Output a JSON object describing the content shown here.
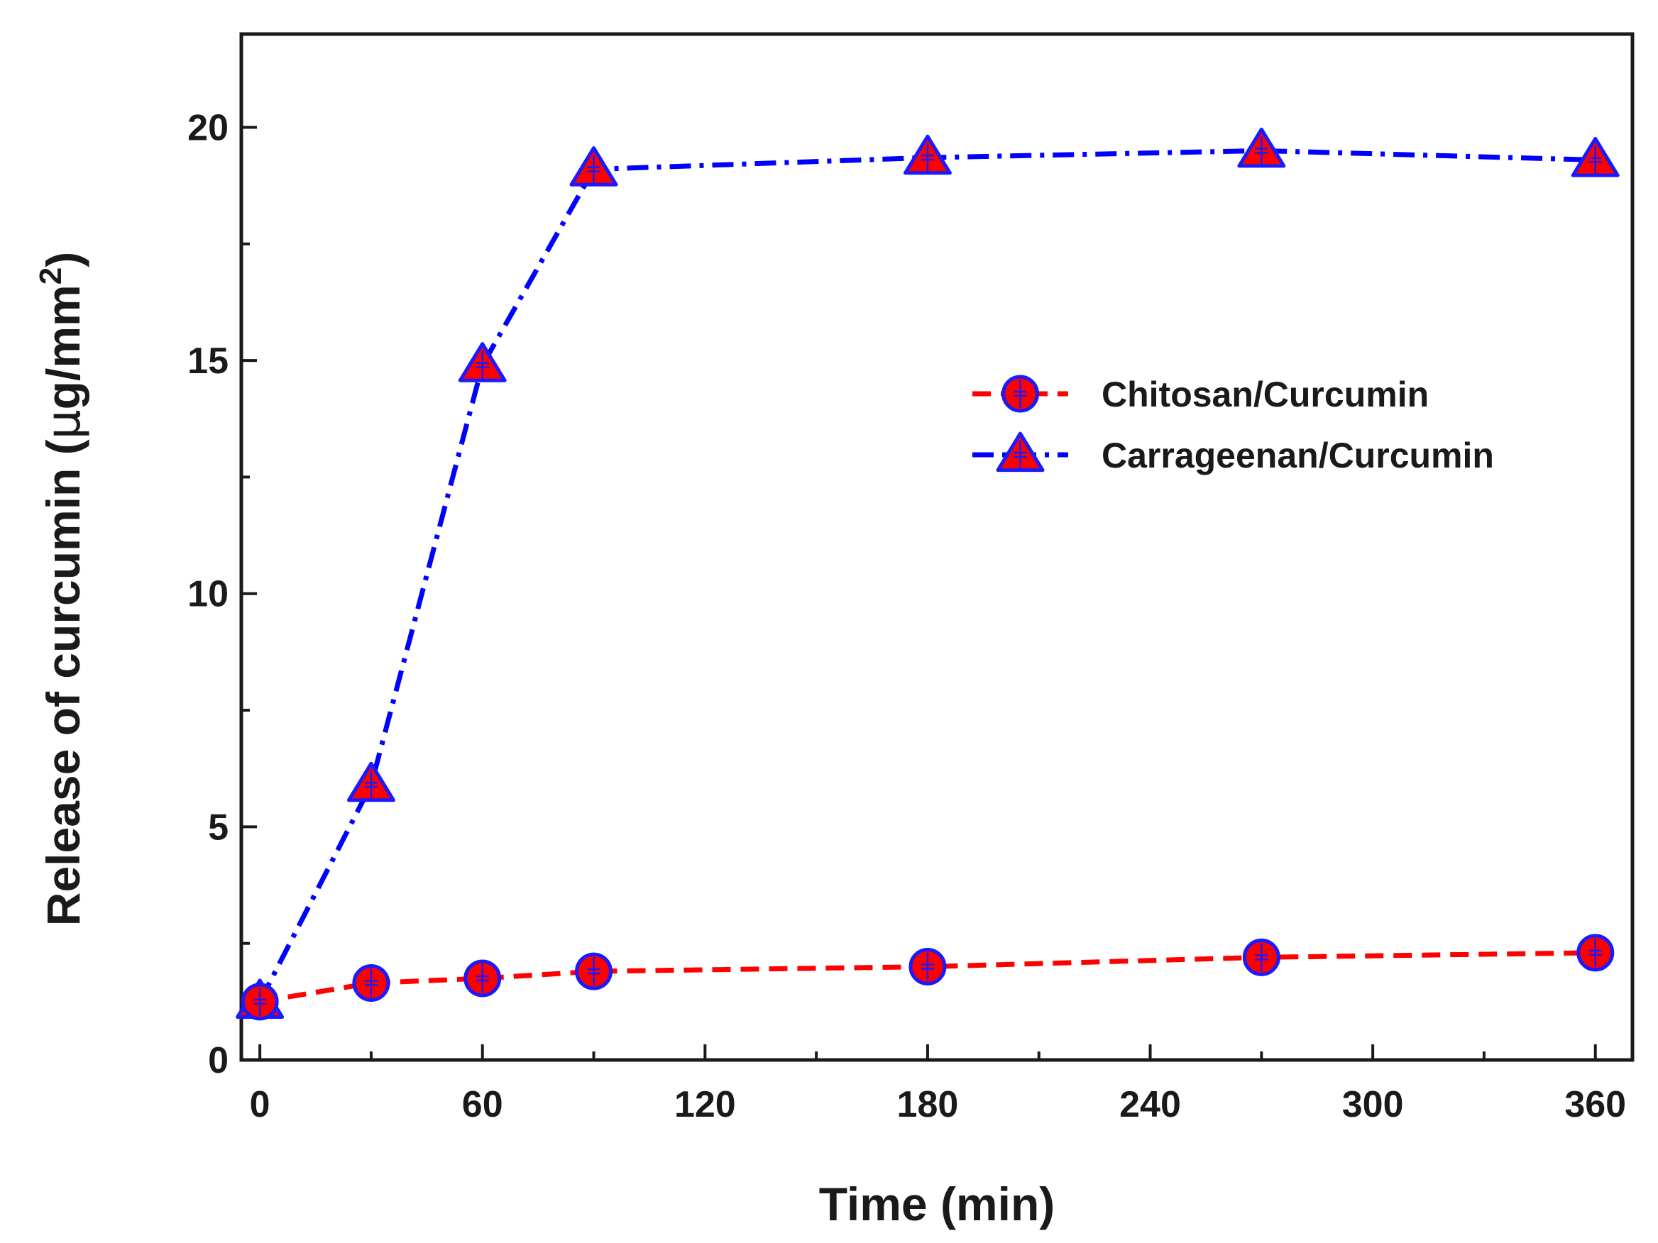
{
  "chart_data": {
    "type": "line",
    "title": "",
    "xlabel": "Time (min)",
    "ylabel_prefix": "Release of curcumin (",
    "ylabel_mu": "μ",
    "ylabel_unit": "g/mm",
    "ylabel_sup": "2",
    "ylabel_suffix": ")",
    "xlim": [
      -5,
      370
    ],
    "ylim": [
      0,
      22
    ],
    "xticks": [
      0,
      60,
      120,
      180,
      240,
      300,
      360
    ],
    "xtick_labels": [
      "0",
      "60",
      "120",
      "180",
      "240",
      "300",
      "360"
    ],
    "yticks": [
      0,
      5,
      10,
      15,
      20
    ],
    "ytick_labels": [
      "0",
      "5",
      "10",
      "15",
      "20"
    ],
    "x_minor_step": 30,
    "y_minor_step": 2.5,
    "grid": false,
    "legend_position": "center-right",
    "series": [
      {
        "name": "Chitosan/Curcumin",
        "marker": "circle",
        "line_style": "dash",
        "line_color": "#ff0000",
        "marker_fill": "#ff0000",
        "marker_edge": "#1a1aff",
        "x": [
          0,
          30,
          60,
          90,
          180,
          270,
          360
        ],
        "y": [
          1.25,
          1.65,
          1.75,
          1.9,
          2.0,
          2.2,
          2.3
        ]
      },
      {
        "name": "Carrageenan/Curcumin",
        "marker": "triangle",
        "line_style": "dashdot",
        "line_color": "#0000ff",
        "marker_fill": "#ff0000",
        "marker_edge": "#1a1aff",
        "x": [
          0,
          30,
          60,
          90,
          180,
          270,
          360
        ],
        "y": [
          1.25,
          5.9,
          14.9,
          19.1,
          19.35,
          19.5,
          19.3
        ]
      }
    ]
  }
}
